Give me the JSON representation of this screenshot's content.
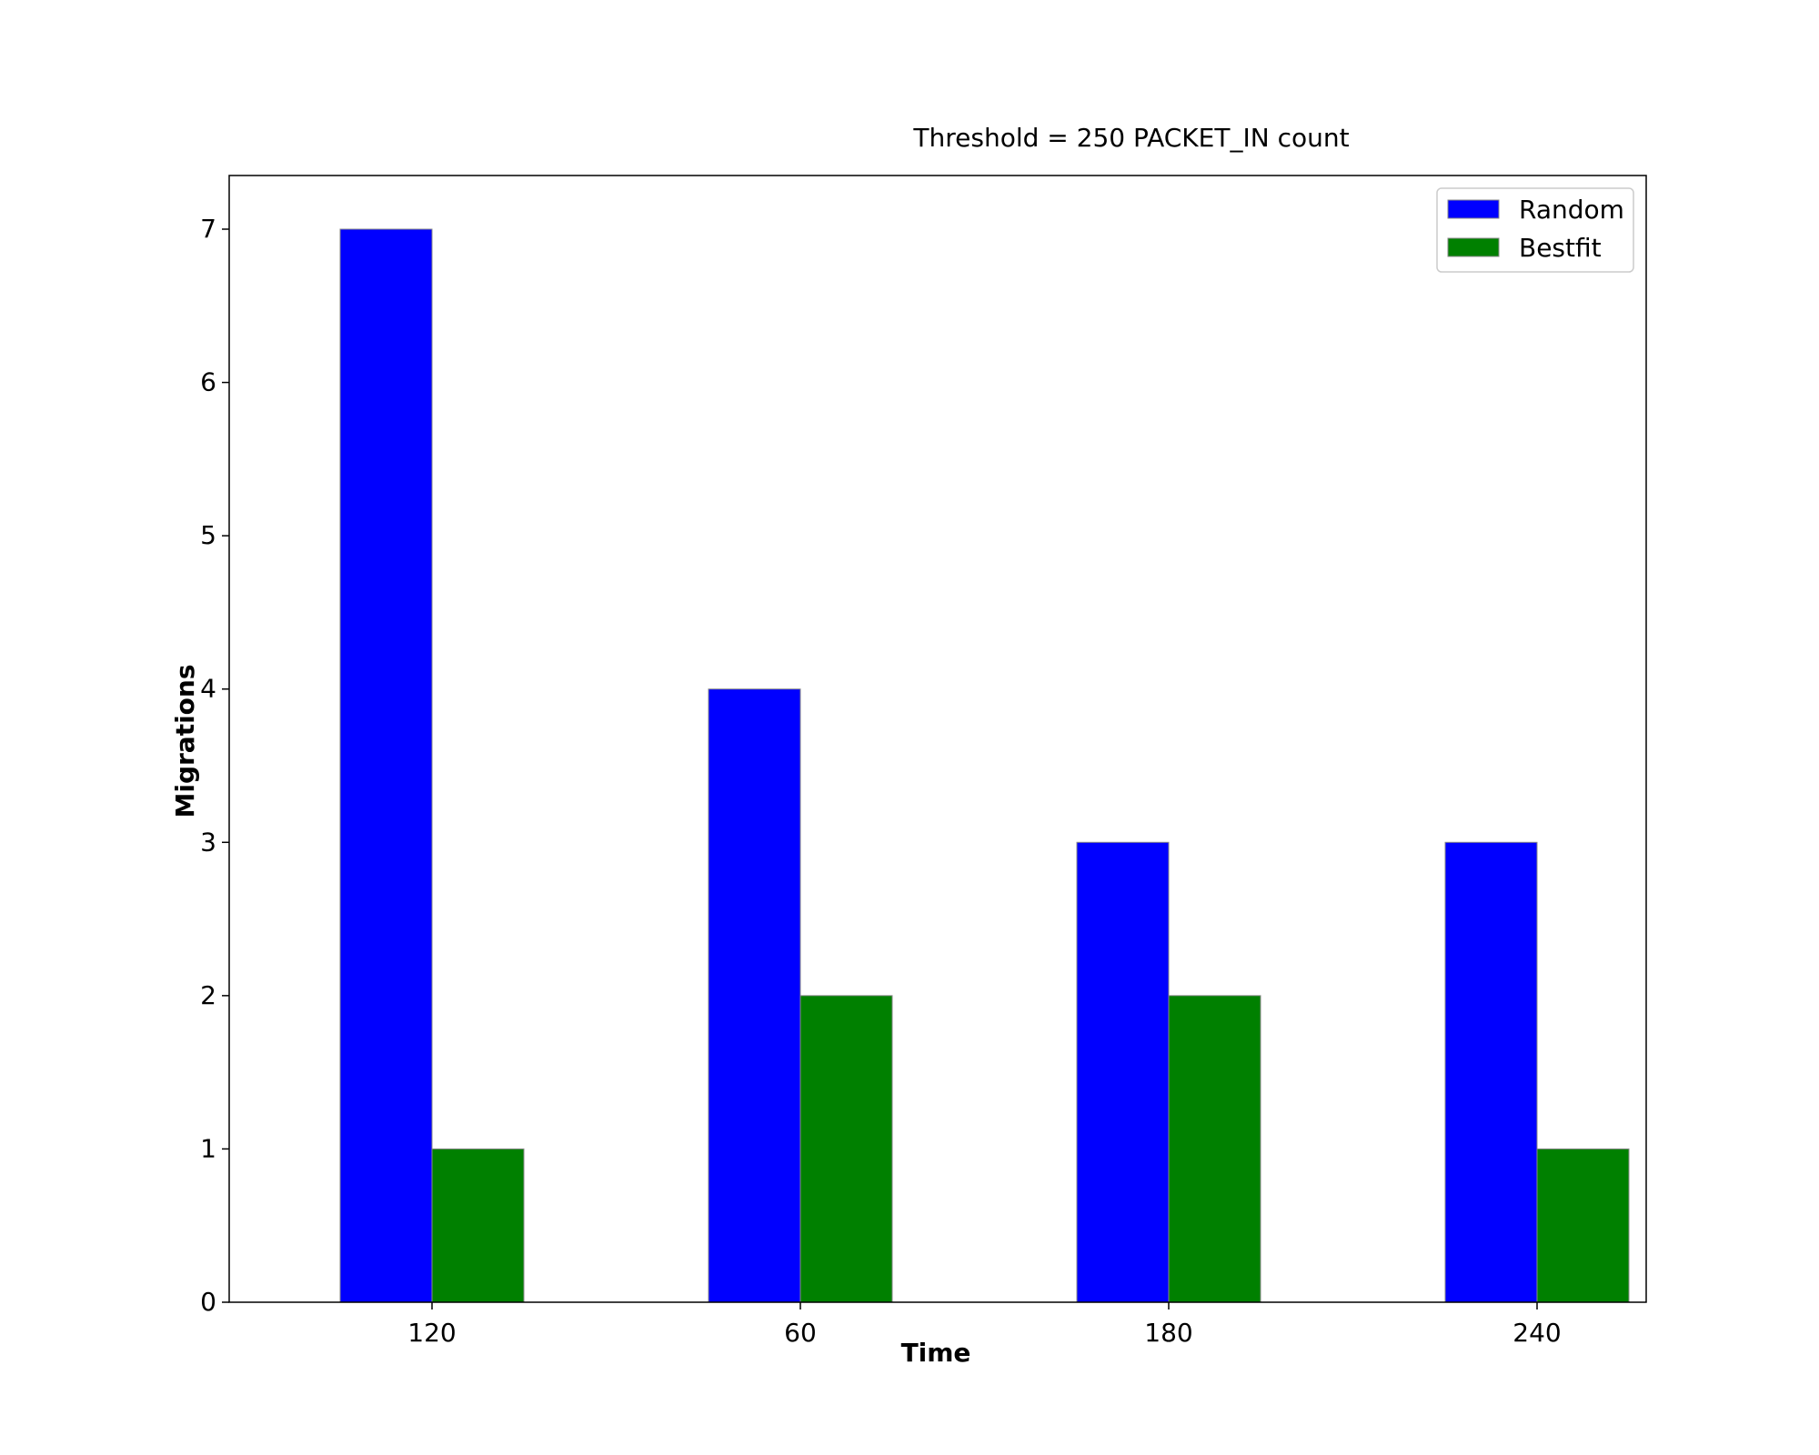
{
  "chart_data": {
    "type": "bar",
    "title": "Threshold = 250 PACKET_IN count",
    "xlabel": "Time",
    "ylabel": "Migrations",
    "categories": [
      "120",
      "60",
      "180",
      "240"
    ],
    "series": [
      {
        "name": "Random",
        "values": [
          7,
          4,
          3,
          3
        ],
        "color": "#0000ff"
      },
      {
        "name": "Bestfit",
        "values": [
          1,
          2,
          2,
          1
        ],
        "color": "#008000"
      }
    ],
    "ylim": [
      0,
      7.35
    ],
    "yticks": [
      0,
      1,
      2,
      3,
      4,
      5,
      6,
      7
    ],
    "grid": false,
    "legend_position": "top-right"
  }
}
